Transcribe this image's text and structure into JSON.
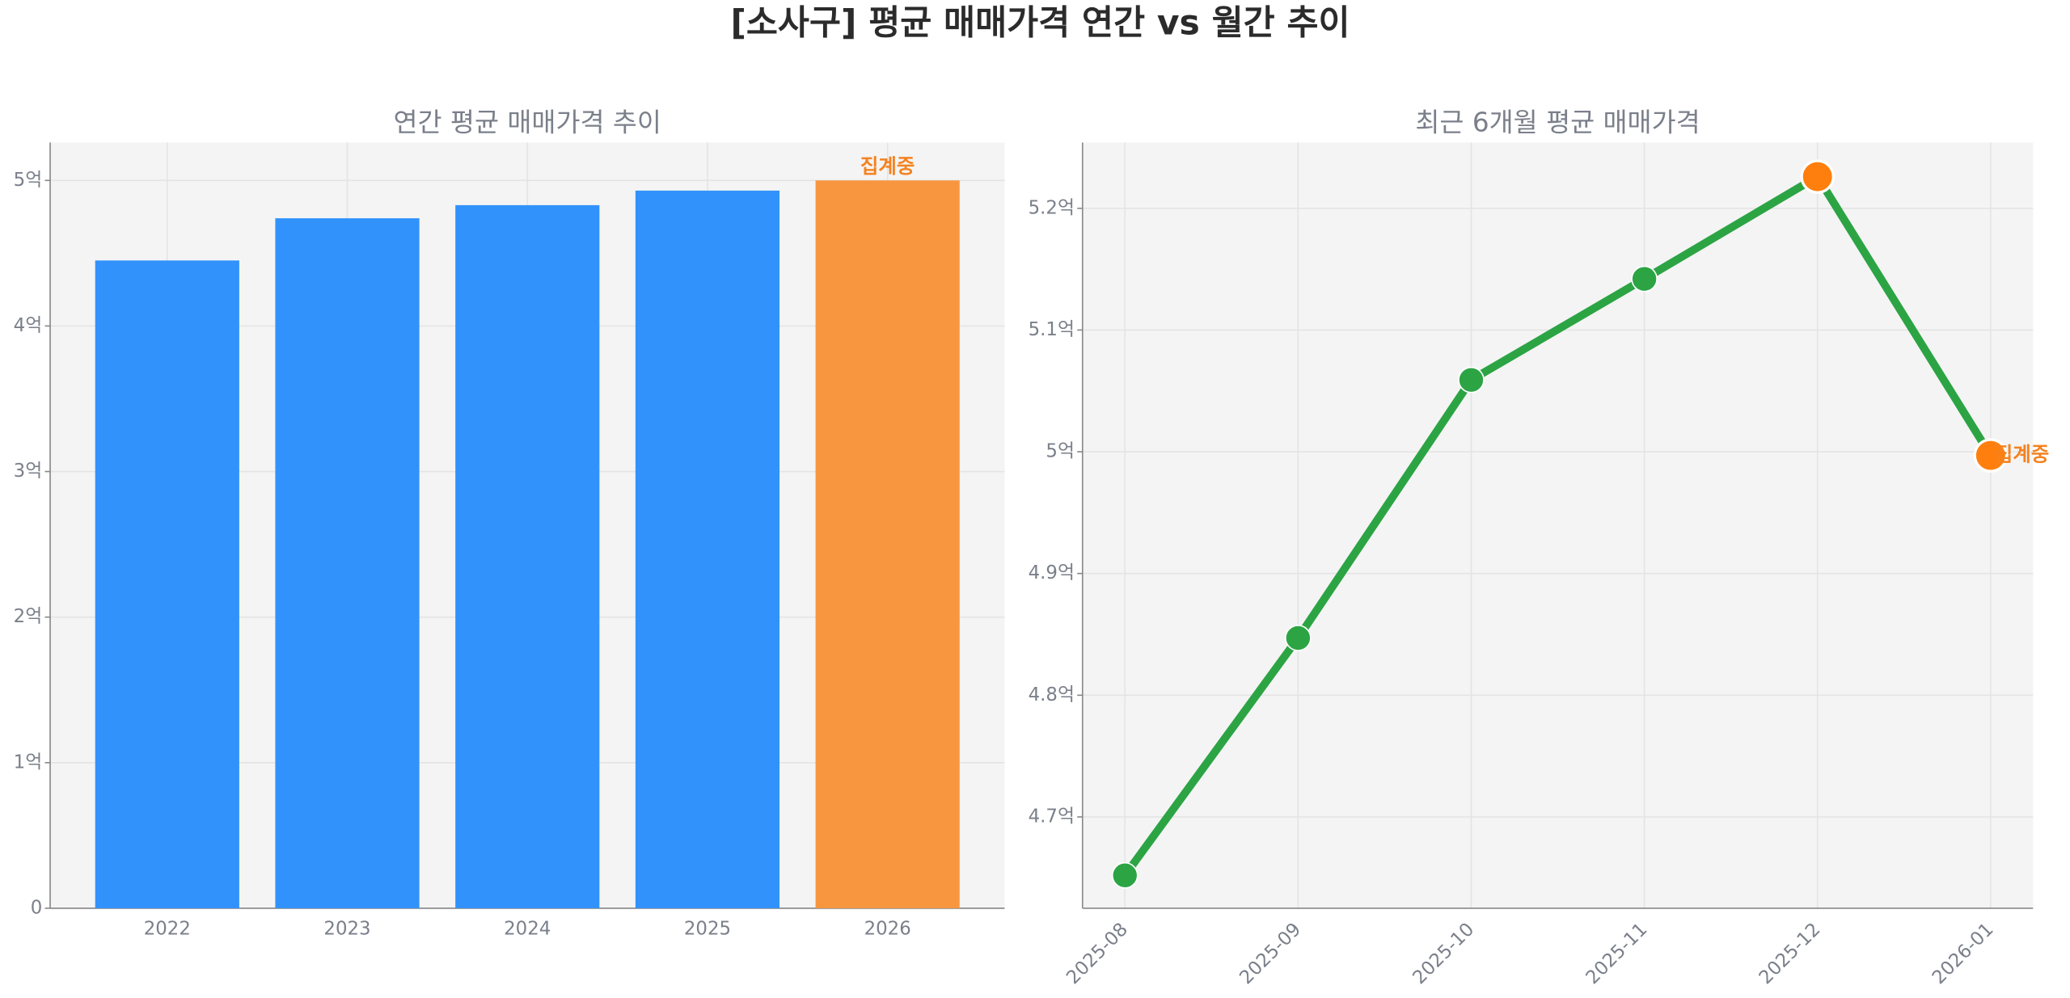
{
  "title": "[소사구] 평균 매매가격 연간 vs 월간 추이",
  "chart_data": [
    {
      "type": "bar",
      "title": "연간 평균 매매가격 추이",
      "categories": [
        "2022",
        "2023",
        "2024",
        "2025",
        "2026"
      ],
      "values": [
        4.45,
        4.74,
        4.83,
        4.93,
        5.0
      ],
      "colors": [
        "#3192fc",
        "#3192fc",
        "#3192fc",
        "#3192fc",
        "#f89640"
      ],
      "annotation": "집계중",
      "ylim": [
        0,
        5.26
      ],
      "yticks": [
        0,
        {
          "value": 1,
          "label": "1억"
        },
        {
          "value": 2,
          "label": "2억"
        },
        {
          "value": 3,
          "label": "3억"
        },
        {
          "value": 4,
          "label": "4억"
        },
        {
          "value": 5,
          "label": "5억"
        }
      ],
      "grid": true
    },
    {
      "type": "line",
      "title": "최근 6개월 평균 매매가격",
      "x": [
        "2025-08",
        "2025-09",
        "2025-10",
        "2025-11",
        "2025-12",
        "2026-01"
      ],
      "values": [
        4.652,
        4.847,
        5.059,
        5.142,
        5.226,
        4.997
      ],
      "color": "#2ca444",
      "point_colors": [
        "#2ca444",
        "#2ca444",
        "#2ca444",
        "#2ca444",
        "#ff7f0e",
        "#ff7f0e"
      ],
      "annotation": "집계중",
      "ylim": [
        4.625,
        5.254
      ],
      "yticks": [
        {
          "value": 4.7,
          "label": "4.7억"
        },
        {
          "value": 4.8,
          "label": "4.8억"
        },
        {
          "value": 4.9,
          "label": "4.9억"
        },
        {
          "value": 5,
          "label": "5억"
        },
        {
          "value": 5.1,
          "label": "5.1억"
        },
        {
          "value": 5.2,
          "label": "5.2억"
        }
      ],
      "grid": true
    }
  ]
}
